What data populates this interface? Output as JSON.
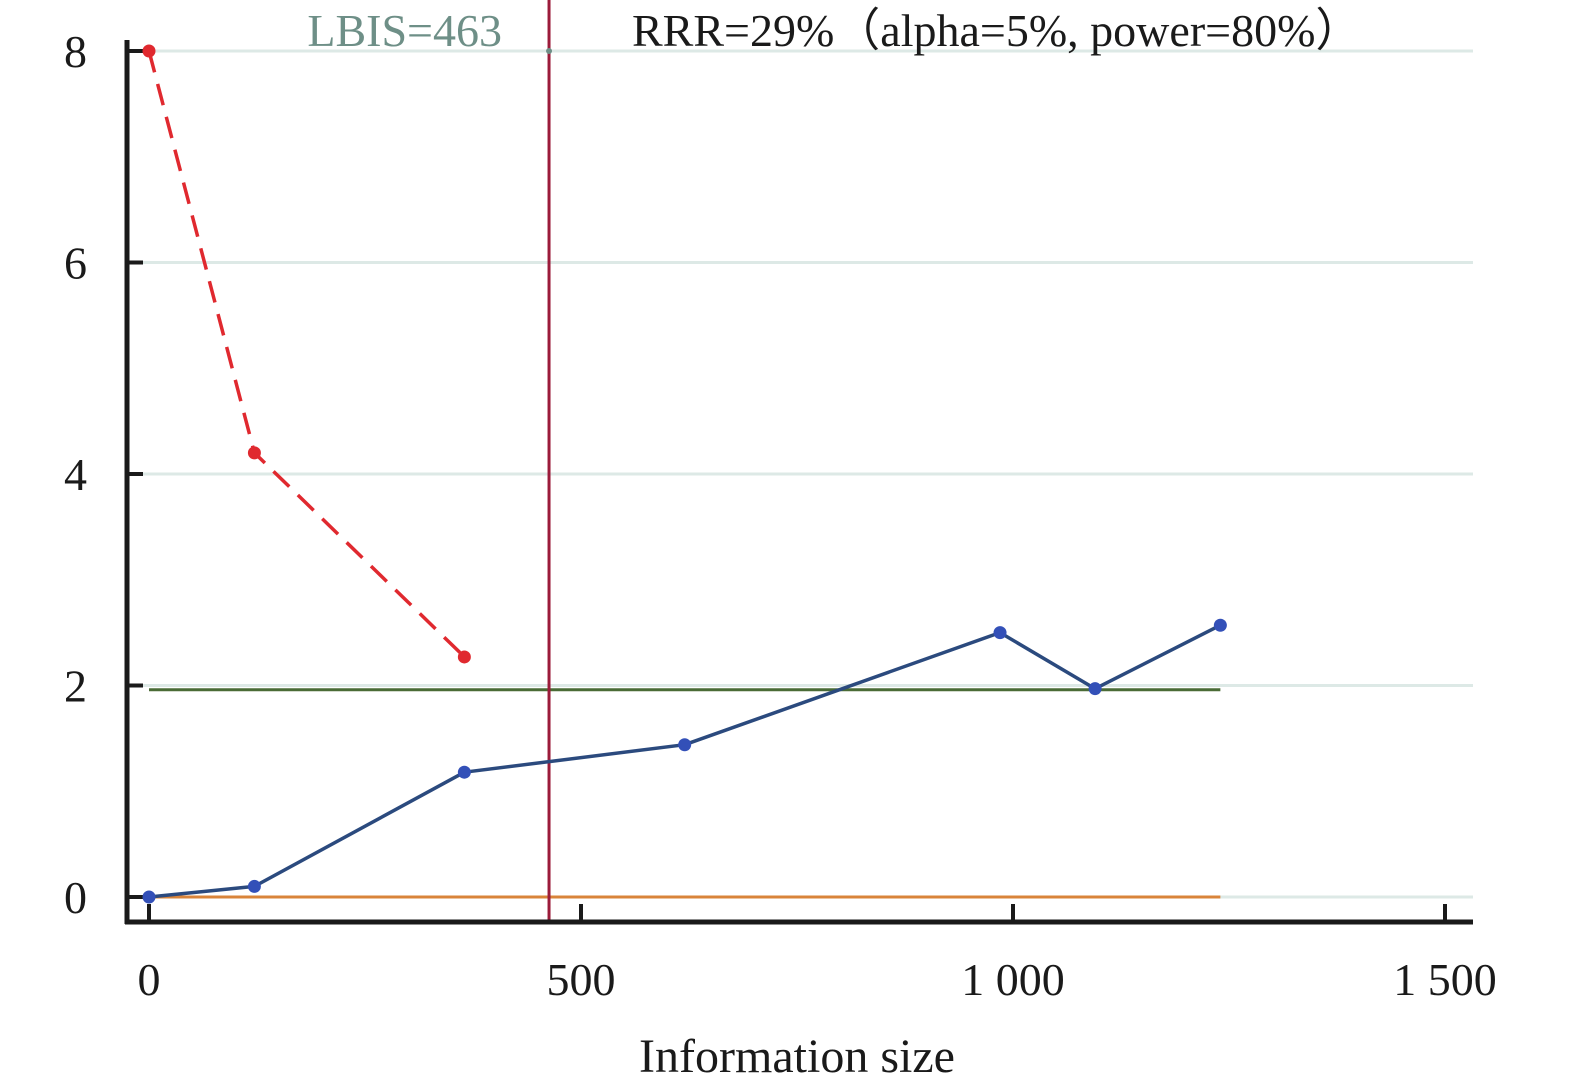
{
  "chart_data": {
    "type": "line",
    "title": "",
    "xlabel": "Information size",
    "ylabel": "",
    "xlim": [
      -30,
      1500
    ],
    "ylim": [
      -0.12,
      8.1
    ],
    "x_ticks": [
      0,
      500,
      1000,
      1500
    ],
    "x_tick_labels": [
      "0",
      "500",
      "1 000",
      "1 500"
    ],
    "y_ticks": [
      0,
      2,
      4,
      6,
      8
    ],
    "y_tick_labels": [
      "0",
      "2",
      "4",
      "6",
      "8"
    ],
    "grid": true,
    "colors": {
      "cumulative_z": "#2b4a7e",
      "cumulative_z_points": "#3350b8",
      "boundary": "#e0292f",
      "z_critical": "#4a6b36",
      "null_line": "#d9843a",
      "lbis_line": "#9b1b3a",
      "lbis_label": "#6e8f87",
      "grid": "#dde9e6"
    },
    "series": [
      {
        "key": "boundary",
        "style": "dashed",
        "x": [
          0,
          122,
          365
        ],
        "y": [
          8.0,
          4.2,
          2.27
        ]
      },
      {
        "key": "cumulative_z",
        "style": "solid",
        "x": [
          0,
          122,
          365,
          620,
          985,
          1095,
          1240
        ],
        "y": [
          0.0,
          0.1,
          1.18,
          1.44,
          2.5,
          1.97,
          2.57
        ]
      }
    ],
    "reference_lines": [
      {
        "key": "z_critical",
        "orientation": "horizontal",
        "y": 1.96,
        "x_range": [
          0,
          1240
        ]
      },
      {
        "key": "null_line",
        "orientation": "horizontal",
        "y": 0,
        "x_range": [
          0,
          1240
        ]
      },
      {
        "key": "lbis_line",
        "orientation": "vertical",
        "x": 463
      }
    ],
    "annotations": {
      "lbis": "LBIS=463",
      "rrr": "RRR=29%（alpha=5%, power=80%）"
    }
  }
}
